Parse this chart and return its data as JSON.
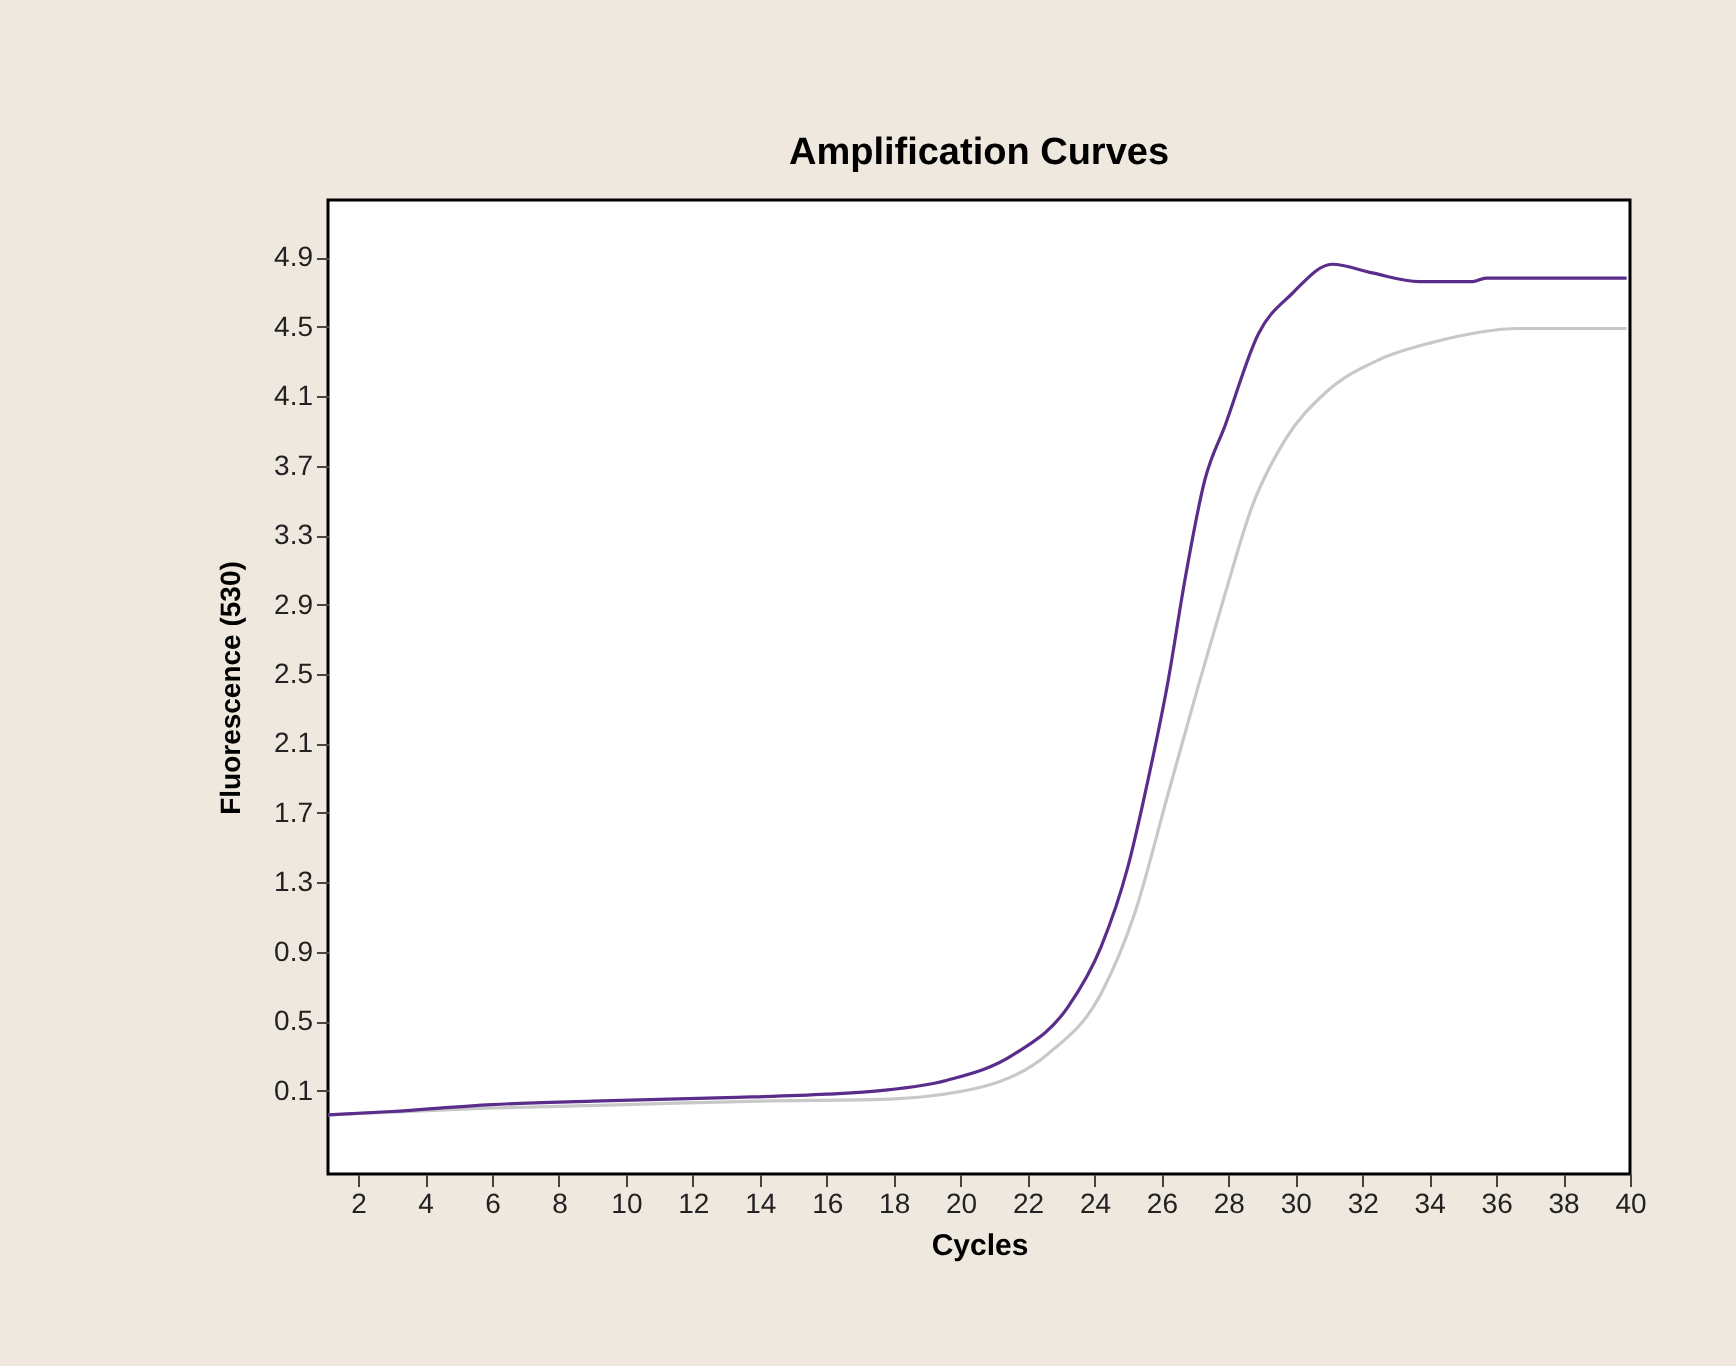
{
  "chart_data": {
    "type": "line",
    "title": "Amplification Curves",
    "xlabel": "Cycles",
    "ylabel": "Fluorescence (530)",
    "xlim": [
      1.1,
      40
    ],
    "xticks": [
      2,
      4,
      6,
      8,
      10,
      12,
      14,
      16,
      18,
      20,
      22,
      24,
      26,
      28,
      30,
      32,
      34,
      36,
      38,
      40
    ],
    "ylim": [
      -0.38,
      5.23
    ],
    "yticks": [
      0.1,
      0.5,
      0.9,
      1.3,
      1.7,
      2.1,
      2.5,
      2.9,
      3.3,
      3.7,
      4.1,
      4.5,
      4.9
    ],
    "grid": false,
    "legend": false,
    "marker": "none",
    "line_style": "solid",
    "series": [
      {
        "color": "#c8c8c8",
        "x": [
          1.1,
          6,
          10,
          14,
          17.6,
          20.6,
          22.6,
          24.2,
          25.2,
          26.2,
          27.1,
          27.9,
          28.7,
          29.7,
          30.9,
          32.5,
          34.1,
          36.7,
          39.9
        ],
        "values": [
          -0.04,
          0.0,
          0.02,
          0.04,
          0.05,
          0.12,
          0.31,
          0.66,
          1.12,
          1.81,
          2.43,
          2.96,
          3.46,
          3.85,
          4.12,
          4.31,
          4.41,
          4.49,
          4.49
        ]
      },
      {
        "color": "#5a2d8a",
        "x": [
          1.1,
          3,
          6,
          9,
          13,
          16,
          17.6,
          19.6,
          21.6,
          23.2,
          24.2,
          25,
          25.6,
          26.2,
          26.7,
          27.3,
          27.9,
          28.9,
          29.9,
          31.1,
          32.3,
          33.7,
          35.3,
          35.7,
          39.9
        ],
        "values": [
          -0.04,
          -0.02,
          0.02,
          0.04,
          0.06,
          0.08,
          0.1,
          0.16,
          0.31,
          0.58,
          0.93,
          1.39,
          1.89,
          2.46,
          3.04,
          3.62,
          3.93,
          4.46,
          4.69,
          4.86,
          4.81,
          4.76,
          4.76,
          4.78,
          4.78
        ]
      }
    ]
  }
}
